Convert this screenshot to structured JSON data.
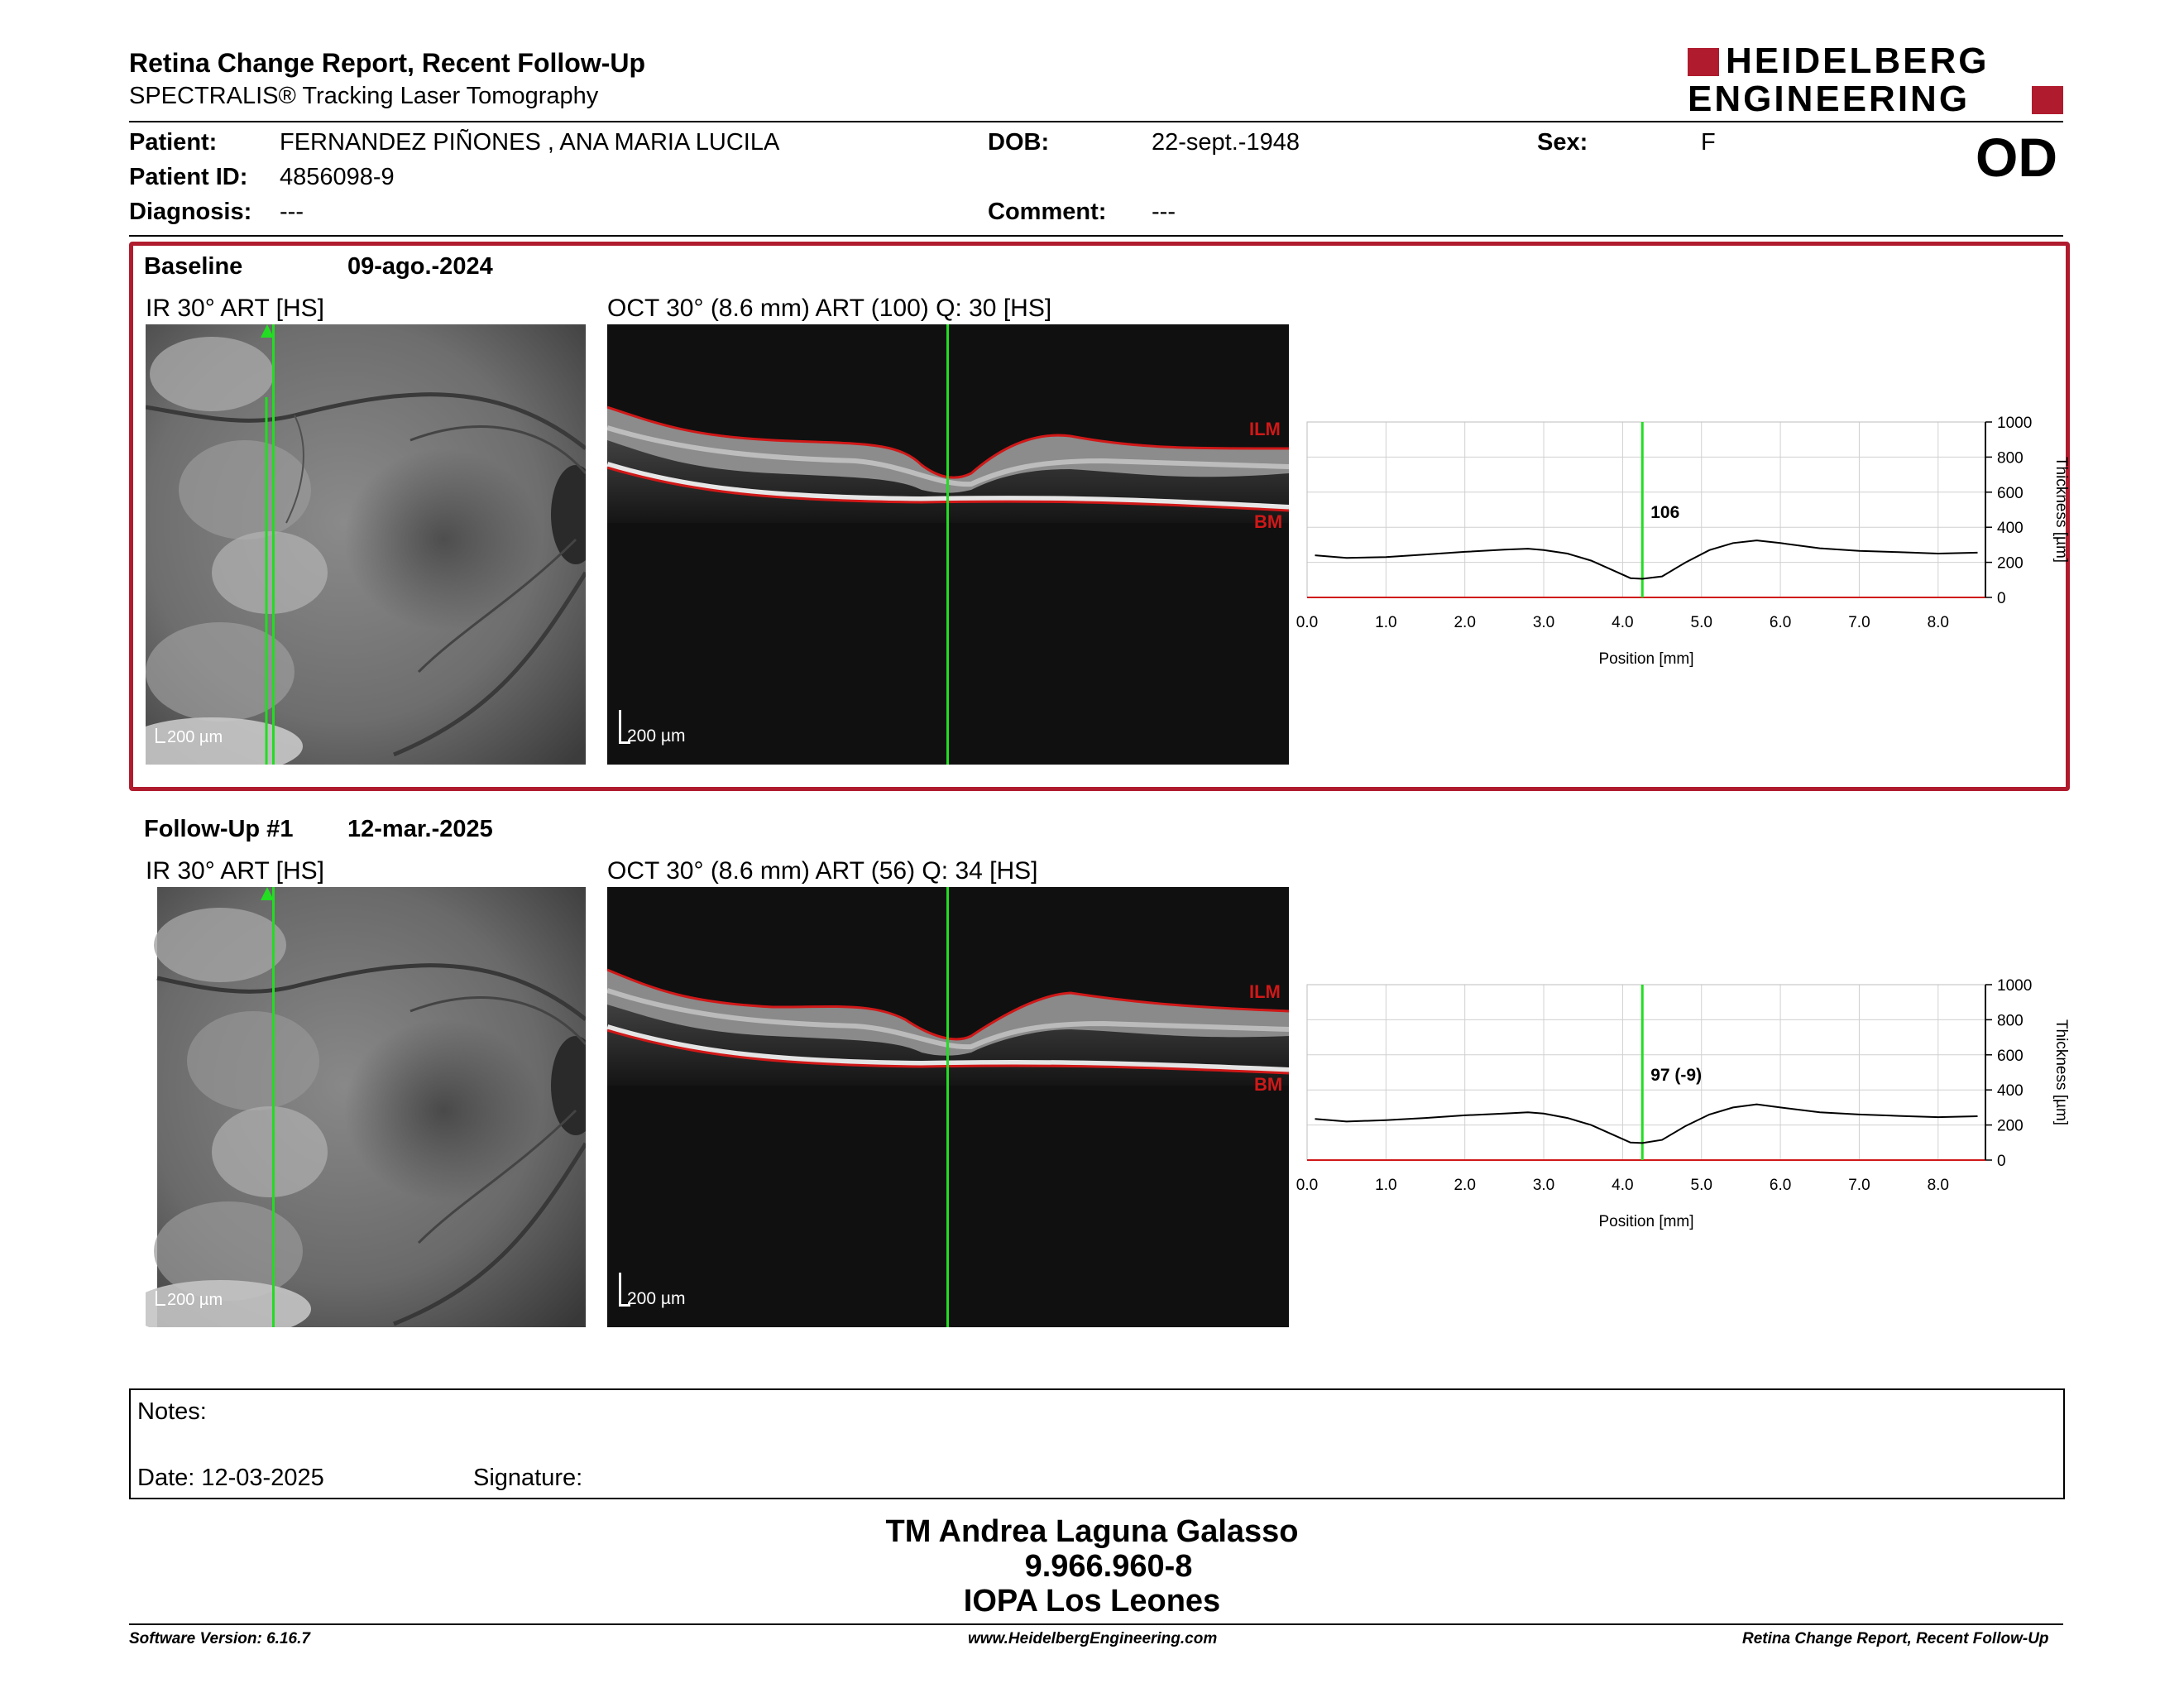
{
  "header": {
    "title": "Retina Change Report, Recent Follow-Up",
    "subtitle": "SPECTRALIS® Tracking Laser Tomography",
    "logo_line1": "HEIDELBERG",
    "logo_line2": "ENGINEERING",
    "eye": "OD"
  },
  "patient": {
    "patient_label": "Patient:",
    "patient_name": "FERNANDEZ PIÑONES , ANA MARIA LUCILA",
    "dob_label": "DOB:",
    "dob": "22-sept.-1948",
    "sex_label": "Sex:",
    "sex": "F",
    "id_label": "Patient ID:",
    "id": "4856098-9",
    "diagnosis_label": "Diagnosis:",
    "diagnosis": "---",
    "comment_label": "Comment:",
    "comment": "---"
  },
  "colors": {
    "accent_red": "#b01c2e",
    "scan_green": "#22dd22",
    "layer_red": "#d01818"
  },
  "baseline": {
    "label": "Baseline",
    "date": "09-ago.-2024",
    "ir_label": "IR 30° ART [HS]",
    "oct_label": "OCT 30° (8.6 mm) ART (100) Q: 30 [HS]",
    "ir_scale": "200 µm",
    "oct_scale": "200 µm",
    "ilm_label": "ILM",
    "bm_label": "BM"
  },
  "followup": {
    "label": "Follow-Up #1",
    "date": "12-mar.-2025",
    "ir_label": "IR 30° ART [HS]",
    "oct_label": "OCT 30° (8.6 mm) ART (56) Q: 34 [HS]",
    "ir_scale": "200 µm",
    "oct_scale": "200 µm",
    "ilm_label": "ILM",
    "bm_label": "BM"
  },
  "chart_data": [
    {
      "type": "line",
      "xlabel": "Position [mm]",
      "ylabel": "Thickness [µm]",
      "xlim": [
        0,
        8.6
      ],
      "ylim": [
        0,
        1000
      ],
      "x_ticks": [
        "0.0",
        "1.0",
        "2.0",
        "3.0",
        "4.0",
        "5.0",
        "6.0",
        "7.0",
        "8.0"
      ],
      "y_ticks": [
        "0",
        "200",
        "400",
        "600",
        "800",
        "1000"
      ],
      "grid": true,
      "cursor_x": 4.25,
      "cursor_label": "106",
      "x": [
        0.1,
        0.5,
        1.0,
        1.5,
        2.0,
        2.5,
        2.8,
        3.0,
        3.3,
        3.6,
        3.9,
        4.1,
        4.25,
        4.5,
        4.8,
        5.1,
        5.4,
        5.7,
        6.0,
        6.5,
        7.0,
        7.5,
        8.0,
        8.5
      ],
      "y": [
        240,
        225,
        230,
        245,
        260,
        272,
        278,
        270,
        250,
        210,
        150,
        110,
        106,
        120,
        200,
        270,
        310,
        325,
        310,
        280,
        265,
        258,
        250,
        255
      ]
    },
    {
      "type": "line",
      "xlabel": "Position [mm]",
      "ylabel": "Thickness [µm]",
      "xlim": [
        0,
        8.6
      ],
      "ylim": [
        0,
        1000
      ],
      "x_ticks": [
        "0.0",
        "1.0",
        "2.0",
        "3.0",
        "4.0",
        "5.0",
        "6.0",
        "7.0",
        "8.0"
      ],
      "y_ticks": [
        "0",
        "200",
        "400",
        "600",
        "800",
        "1000"
      ],
      "grid": true,
      "cursor_x": 4.25,
      "cursor_label": "97 (-9)",
      "x": [
        0.1,
        0.5,
        1.0,
        1.5,
        2.0,
        2.5,
        2.8,
        3.0,
        3.3,
        3.6,
        3.9,
        4.1,
        4.25,
        4.5,
        4.8,
        5.1,
        5.4,
        5.7,
        6.0,
        6.5,
        7.0,
        7.5,
        8.0,
        8.5
      ],
      "y": [
        235,
        220,
        228,
        240,
        255,
        265,
        272,
        265,
        240,
        200,
        140,
        100,
        97,
        115,
        195,
        260,
        300,
        318,
        300,
        272,
        260,
        252,
        245,
        250
      ]
    }
  ],
  "notes": {
    "notes_label": "Notes:",
    "date_label": "Date: 12-03-2025",
    "signature_label": "Signature:"
  },
  "signature": {
    "name": "TM Andrea Laguna Galasso",
    "id": "9.966.960-8",
    "org": "IOPA Los Leones"
  },
  "footer": {
    "software": "Software Version: 6.16.7",
    "website": "www.HeidelbergEngineering.com",
    "report": "Retina Change Report, Recent Follow-Up"
  }
}
